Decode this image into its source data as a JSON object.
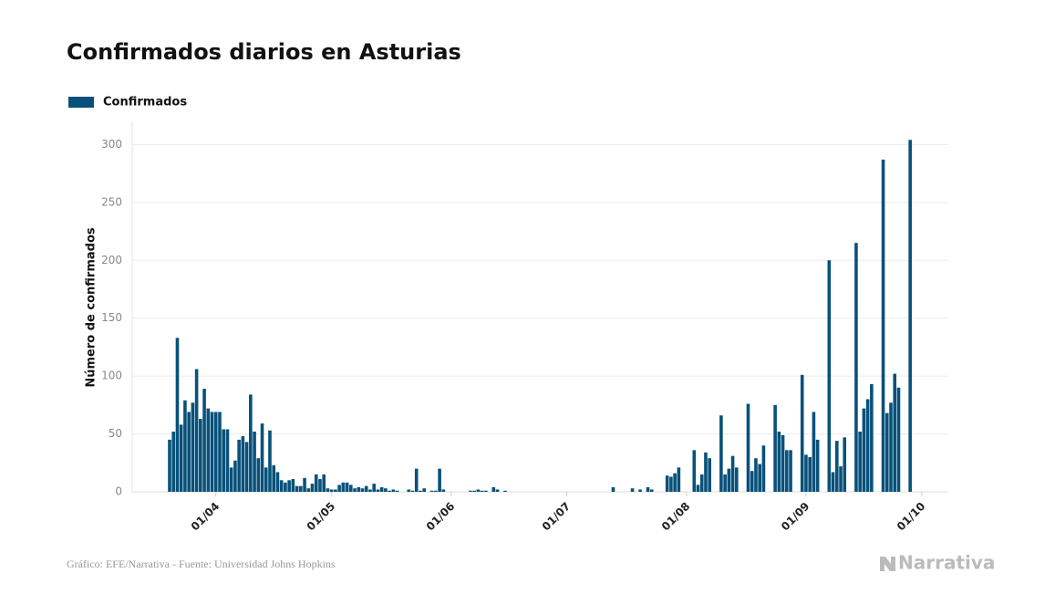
{
  "chart_data": {
    "type": "bar",
    "title": "Confirmados diarios en Asturias",
    "ylabel": "Número de confirmados",
    "source": "Gráfico: EFE/Narrativa - Fuente: Universidad Johns Hopkins",
    "logo": "Narrativa",
    "categories": [
      "20/03",
      "21/03",
      "22/03",
      "23/03",
      "24/03",
      "25/03",
      "26/03",
      "27/03",
      "28/03",
      "29/03",
      "30/03",
      "31/03",
      "01/04",
      "02/04",
      "03/04",
      "04/04",
      "05/04",
      "06/04",
      "07/04",
      "08/04",
      "09/04",
      "10/04",
      "11/04",
      "12/04",
      "13/04",
      "14/04",
      "15/04",
      "16/04",
      "17/04",
      "18/04",
      "19/04",
      "20/04",
      "21/04",
      "22/04",
      "23/04",
      "24/04",
      "25/04",
      "26/04",
      "27/04",
      "28/04",
      "29/04",
      "30/04",
      "01/05",
      "02/05",
      "03/05",
      "04/05",
      "05/05",
      "06/05",
      "07/05",
      "08/05",
      "09/05",
      "10/05",
      "11/05",
      "12/05",
      "13/05",
      "14/05",
      "15/05",
      "16/05",
      "17/05",
      "18/05",
      "19/05",
      "20/05",
      "21/05",
      "22/05",
      "23/05",
      "24/05",
      "25/05",
      "26/05",
      "27/05",
      "28/05",
      "29/05",
      "30/05",
      "31/05",
      "01/06",
      "02/06",
      "03/06",
      "04/06",
      "05/06",
      "06/06",
      "07/06",
      "08/06",
      "09/06",
      "10/06",
      "11/06",
      "12/06",
      "13/06",
      "14/06",
      "15/06",
      "16/06",
      "17/06",
      "18/06",
      "19/06",
      "20/06",
      "21/06",
      "22/06",
      "23/06",
      "24/06",
      "25/06",
      "26/06",
      "27/06",
      "28/06",
      "29/06",
      "30/06",
      "01/07",
      "02/07",
      "03/07",
      "04/07",
      "05/07",
      "06/07",
      "07/07",
      "08/07",
      "09/07",
      "10/07",
      "11/07",
      "12/07",
      "13/07",
      "14/07",
      "15/07",
      "16/07",
      "17/07",
      "18/07",
      "19/07",
      "20/07",
      "21/07",
      "22/07",
      "23/07",
      "24/07",
      "25/07",
      "26/07",
      "27/07",
      "28/07",
      "29/07",
      "30/07",
      "31/07",
      "01/08",
      "02/08",
      "03/08",
      "04/08",
      "05/08",
      "06/08",
      "07/08",
      "08/08",
      "09/08",
      "10/08",
      "11/08",
      "12/08",
      "13/08",
      "14/08",
      "15/08",
      "16/08",
      "17/08",
      "18/08",
      "19/08",
      "20/08",
      "21/08",
      "22/08",
      "23/08",
      "24/08",
      "25/08",
      "26/08",
      "27/08",
      "28/08",
      "29/08",
      "30/08",
      "31/08",
      "01/09",
      "02/09",
      "03/09",
      "04/09",
      "05/09",
      "06/09",
      "07/09",
      "08/09",
      "09/09",
      "10/09",
      "11/09",
      "12/09",
      "13/09",
      "14/09",
      "15/09",
      "16/09",
      "17/09",
      "18/09",
      "19/09",
      "20/09",
      "21/09",
      "22/09",
      "23/09",
      "24/09",
      "25/09",
      "26/09",
      "27/09",
      "28/09",
      "29/09",
      "30/09",
      "01/10"
    ],
    "series": [
      {
        "name": "Confirmados",
        "color": "#08517a",
        "values": [
          45,
          52,
          133,
          58,
          79,
          69,
          77,
          106,
          63,
          89,
          72,
          69,
          69,
          69,
          54,
          54,
          21,
          27,
          45,
          48,
          43,
          84,
          52,
          29,
          59,
          21,
          53,
          23,
          17,
          10,
          8,
          10,
          11,
          5,
          5,
          12,
          3,
          7,
          15,
          11,
          15,
          3,
          2,
          2,
          6,
          8,
          8,
          6,
          3,
          4,
          3,
          5,
          2,
          7,
          2,
          4,
          3,
          1,
          2,
          1,
          0,
          0,
          2,
          1,
          20,
          1,
          3,
          0,
          1,
          1,
          20,
          2,
          0,
          0,
          0,
          0,
          0,
          0,
          1,
          1,
          2,
          1,
          1,
          0,
          4,
          2,
          0,
          1,
          0,
          0,
          0,
          0,
          0,
          0,
          0,
          0,
          0,
          0,
          0,
          0,
          0,
          0,
          0,
          0,
          0,
          0,
          0,
          0,
          0,
          0,
          0,
          0,
          0,
          0,
          0,
          4,
          0,
          0,
          0,
          0,
          3,
          0,
          2,
          0,
          4,
          2,
          0,
          0,
          0,
          14,
          13,
          16,
          21,
          0,
          0,
          0,
          36,
          6,
          15,
          34,
          29,
          0,
          0,
          66,
          15,
          20,
          31,
          21,
          0,
          0,
          76,
          18,
          29,
          24,
          40,
          0,
          0,
          75,
          52,
          49,
          36,
          36,
          0,
          0,
          101,
          32,
          30,
          69,
          45,
          0,
          0,
          200,
          17,
          44,
          22,
          47,
          0,
          0,
          215,
          52,
          72,
          80,
          93,
          0,
          0,
          287,
          68,
          77,
          102,
          90,
          0,
          0,
          304,
          null,
          null,
          null
        ]
      }
    ],
    "xticks": [
      "01/04",
      "01/05",
      "01/06",
      "01/07",
      "01/08",
      "01/09",
      "01/10"
    ],
    "ylim": [
      0,
      320
    ],
    "yticks": [
      0,
      50,
      100,
      150,
      200,
      250,
      300
    ],
    "grid": true
  }
}
